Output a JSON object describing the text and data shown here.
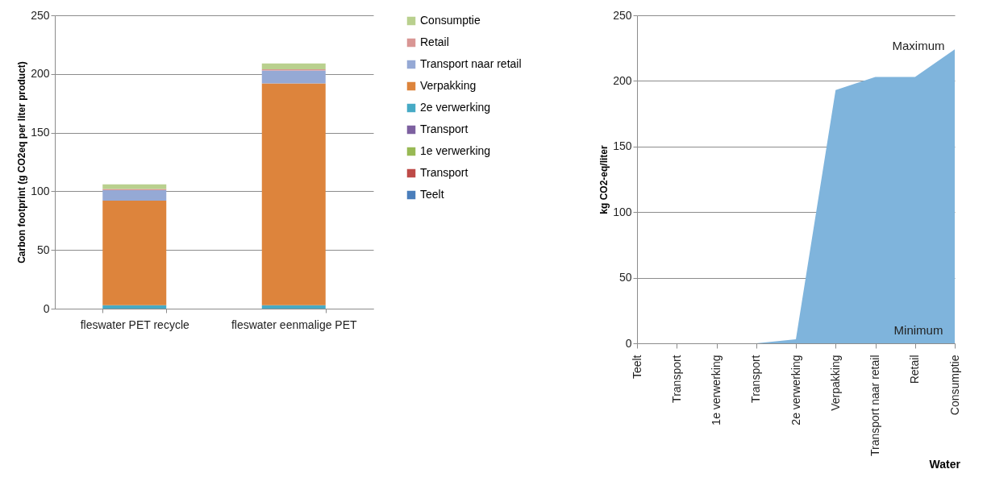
{
  "chart_data": [
    {
      "type": "bar",
      "stacked": true,
      "ylabel": "Carbon footprint (g CO2eq per liter product)",
      "categories": [
        "fleswater PET recycle",
        "fleswater eenmalige PET"
      ],
      "ylim": [
        0,
        250
      ],
      "yticks": [
        0,
        50,
        100,
        150,
        200,
        250
      ],
      "grid": "y",
      "legend": "right",
      "series": [
        {
          "name": "Teelt",
          "color": "#4a7ebb",
          "values": [
            0,
            0
          ]
        },
        {
          "name": "Transport",
          "color": "#be4b48",
          "values": [
            0,
            0
          ]
        },
        {
          "name": "1e verwerking",
          "color": "#98b954",
          "values": [
            0,
            0
          ]
        },
        {
          "name": "Transport",
          "color": "#7d60a0",
          "values": [
            0,
            0
          ]
        },
        {
          "name": "2e verwerking",
          "color": "#46aac5",
          "values": [
            3,
            3
          ]
        },
        {
          "name": "Verpakking",
          "color": "#dd843c",
          "values": [
            89,
            189
          ]
        },
        {
          "name": "Transport naar retail",
          "color": "#95a9d5",
          "values": [
            9,
            11
          ]
        },
        {
          "name": "Retail",
          "color": "#d99694",
          "values": [
            1,
            1
          ]
        },
        {
          "name": "Consumptie",
          "color": "#b9d08e",
          "values": [
            4,
            5
          ]
        }
      ]
    },
    {
      "type": "area",
      "ylabel": "kg CO2-eq/liter",
      "xlabel": "Water",
      "categories": [
        "Teelt",
        "Transport",
        "1e verwerking",
        "Transport",
        "2e verwerking",
        "Verpakking",
        "Transport naar retail",
        "Retail",
        "Consumptie"
      ],
      "ylim": [
        0,
        250
      ],
      "yticks": [
        0,
        50,
        100,
        150,
        200,
        250
      ],
      "grid": "y",
      "series": [
        {
          "color": "#7fb4dc",
          "values": [
            0,
            0,
            0,
            0,
            3,
            193,
            203,
            203,
            224
          ]
        }
      ],
      "annotations": [
        "Maximum",
        "Minimum"
      ]
    }
  ]
}
